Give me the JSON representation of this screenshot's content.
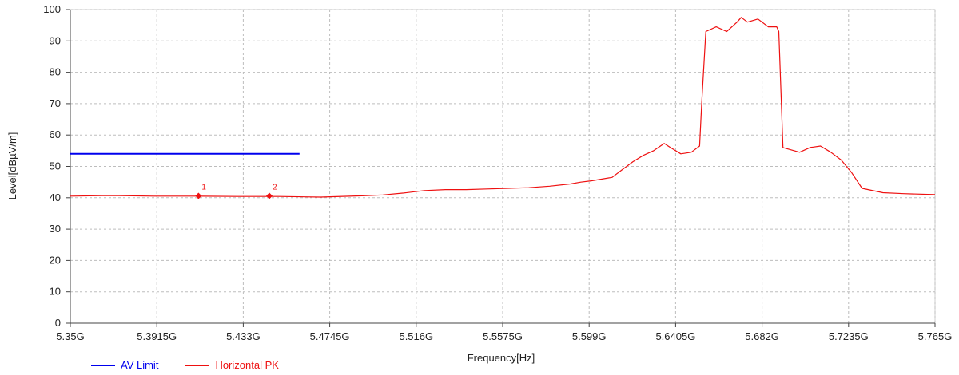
{
  "chart_data": {
    "type": "line",
    "xlabel": "Frequency[Hz]",
    "ylabel": "Level[dBµV/m]",
    "xlim": [
      5.35,
      5.765
    ],
    "ylim": [
      0,
      100
    ],
    "x_ticks": [
      {
        "value": 5.35,
        "label": "5.35G"
      },
      {
        "value": 5.3915,
        "label": "5.3915G"
      },
      {
        "value": 5.433,
        "label": "5.433G"
      },
      {
        "value": 5.4745,
        "label": "5.4745G"
      },
      {
        "value": 5.516,
        "label": "5.516G"
      },
      {
        "value": 5.5575,
        "label": "5.5575G"
      },
      {
        "value": 5.599,
        "label": "5.599G"
      },
      {
        "value": 5.6405,
        "label": "5.6405G"
      },
      {
        "value": 5.682,
        "label": "5.682G"
      },
      {
        "value": 5.7235,
        "label": "5.7235G"
      },
      {
        "value": 5.765,
        "label": "5.765G"
      }
    ],
    "y_ticks": [
      0,
      10,
      20,
      30,
      40,
      50,
      60,
      70,
      80,
      90,
      100
    ],
    "grid": true,
    "legend_position": "bottom-left",
    "series": [
      {
        "name": "AV Limit",
        "color": "#0000ee",
        "x": [
          5.35,
          5.46
        ],
        "y": [
          54,
          54
        ]
      },
      {
        "name": "Horizontal PK",
        "color": "#ee1111",
        "x": [
          5.35,
          5.37,
          5.39,
          5.41,
          5.43,
          5.45,
          5.47,
          5.49,
          5.5,
          5.51,
          5.52,
          5.53,
          5.54,
          5.55,
          5.56,
          5.57,
          5.58,
          5.59,
          5.595,
          5.6,
          5.61,
          5.615,
          5.62,
          5.625,
          5.63,
          5.635,
          5.638,
          5.643,
          5.648,
          5.652,
          5.653,
          5.655,
          5.66,
          5.665,
          5.67,
          5.672,
          5.675,
          5.68,
          5.685,
          5.689,
          5.69,
          5.692,
          5.7,
          5.705,
          5.71,
          5.715,
          5.72,
          5.725,
          5.73,
          5.74,
          5.75,
          5.765
        ],
        "y": [
          40.5,
          40.7,
          40.5,
          40.5,
          40.4,
          40.4,
          40.2,
          40.6,
          40.9,
          41.5,
          42.3,
          42.6,
          42.6,
          42.8,
          43.0,
          43.2,
          43.7,
          44.4,
          45.0,
          45.4,
          46.5,
          49.0,
          51.5,
          53.5,
          55.0,
          57.3,
          56.0,
          54.0,
          54.5,
          56.5,
          70.0,
          93.0,
          94.5,
          93.0,
          96.0,
          97.5,
          96.0,
          97.0,
          94.5,
          94.5,
          93.0,
          56.0,
          54.5,
          56.0,
          56.5,
          54.5,
          52.0,
          48.0,
          43.0,
          41.6,
          41.3,
          41.0
        ]
      }
    ],
    "markers": [
      {
        "label": "1",
        "x": 5.4115,
        "y": 40.6
      },
      {
        "label": "2",
        "x": 5.4455,
        "y": 40.6
      }
    ]
  }
}
